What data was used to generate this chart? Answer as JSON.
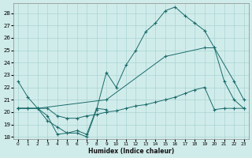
{
  "bg_color": "#d0ecea",
  "grid_color": "#a8d4d2",
  "line_color": "#1a6b6b",
  "xlabel": "Humidex (Indice chaleur)",
  "xlim_min": -0.5,
  "xlim_max": 23.5,
  "ylim_min": 17.8,
  "ylim_max": 28.8,
  "yticks": [
    18,
    19,
    20,
    21,
    22,
    23,
    24,
    25,
    26,
    27,
    28
  ],
  "xticks": [
    0,
    1,
    2,
    3,
    4,
    5,
    6,
    7,
    8,
    9,
    10,
    11,
    12,
    13,
    14,
    15,
    16,
    17,
    18,
    19,
    20,
    21,
    22,
    23
  ],
  "series": [
    {
      "x": [
        0,
        1,
        2,
        3,
        4,
        5,
        6,
        7,
        8,
        9,
        10,
        11,
        12,
        13,
        14,
        15,
        16,
        17,
        18,
        19,
        20,
        21,
        22,
        23
      ],
      "y": [
        22.5,
        21.2,
        20.3,
        19.7,
        18.2,
        18.3,
        18.3,
        18.0,
        20.2,
        23.2,
        22.0,
        23.8,
        25.0,
        26.5,
        27.2,
        28.2,
        28.5,
        27.8,
        27.2,
        26.6,
        25.2,
        22.5,
        21.0,
        20.3
      ]
    },
    {
      "x": [
        0,
        2,
        9,
        15,
        19,
        20,
        22,
        23
      ],
      "y": [
        20.3,
        20.3,
        21.0,
        24.5,
        25.2,
        25.2,
        22.5,
        21.0
      ]
    },
    {
      "x": [
        0,
        1,
        2,
        3,
        4,
        5,
        6,
        7,
        8,
        9,
        10,
        11,
        12,
        13,
        14,
        15,
        16,
        17,
        18,
        19,
        20,
        21,
        22,
        23
      ],
      "y": [
        20.3,
        20.3,
        20.3,
        20.3,
        19.7,
        19.5,
        19.5,
        19.7,
        19.8,
        20.0,
        20.1,
        20.3,
        20.5,
        20.6,
        20.8,
        21.0,
        21.2,
        21.5,
        21.8,
        22.0,
        20.2,
        20.3,
        20.3,
        20.3
      ]
    },
    {
      "x": [
        0,
        1,
        2,
        3,
        4,
        5,
        6,
        7,
        8,
        9
      ],
      "y": [
        20.3,
        20.3,
        20.3,
        19.3,
        18.8,
        18.3,
        18.5,
        18.2,
        20.3,
        20.2
      ]
    }
  ]
}
